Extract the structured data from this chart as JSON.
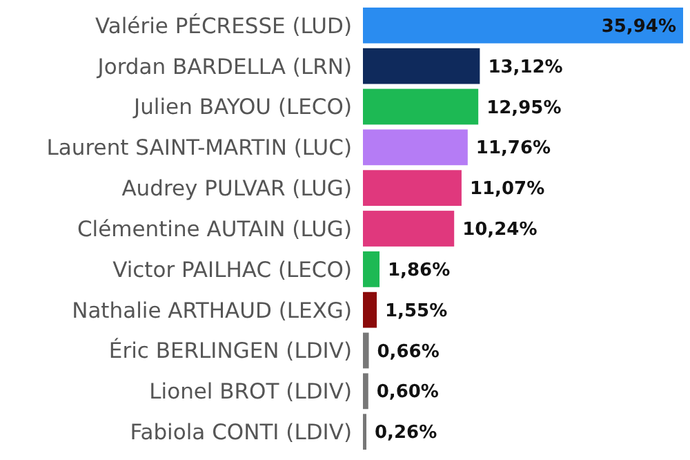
{
  "chart_data": {
    "type": "bar",
    "orientation": "horizontal",
    "categories": [
      "Valérie PÉCRESSE (LUD)",
      "Jordan BARDELLA (LRN)",
      "Julien BAYOU (LECO)",
      "Laurent SAINT-MARTIN (LUC)",
      "Audrey PULVAR (LUG)",
      "Clémentine AUTAIN (LUG)",
      "Victor PAILHAC (LECO)",
      "Nathalie ARTHAUD (LEXG)",
      "Éric BERLINGEN (LDIV)",
      "Lionel BROT (LDIV)",
      "Fabiola CONTI (LDIV)"
    ],
    "values": [
      35.94,
      13.12,
      12.95,
      11.76,
      11.07,
      10.24,
      1.86,
      1.55,
      0.66,
      0.6,
      0.26
    ],
    "colors": [
      "#2a8cf0",
      "#0f2a5c",
      "#1db954",
      "#b57cf5",
      "#e0387d",
      "#e0387d",
      "#1db954",
      "#8b0a0a",
      "#777777",
      "#777777",
      "#777777"
    ],
    "value_labels": [
      "35,94%",
      "13,12%",
      "12,95%",
      "11,76%",
      "11,07%",
      "10,24%",
      "1,86%",
      "1,55%",
      "0,66%",
      "0,60%",
      "0,26%"
    ]
  }
}
